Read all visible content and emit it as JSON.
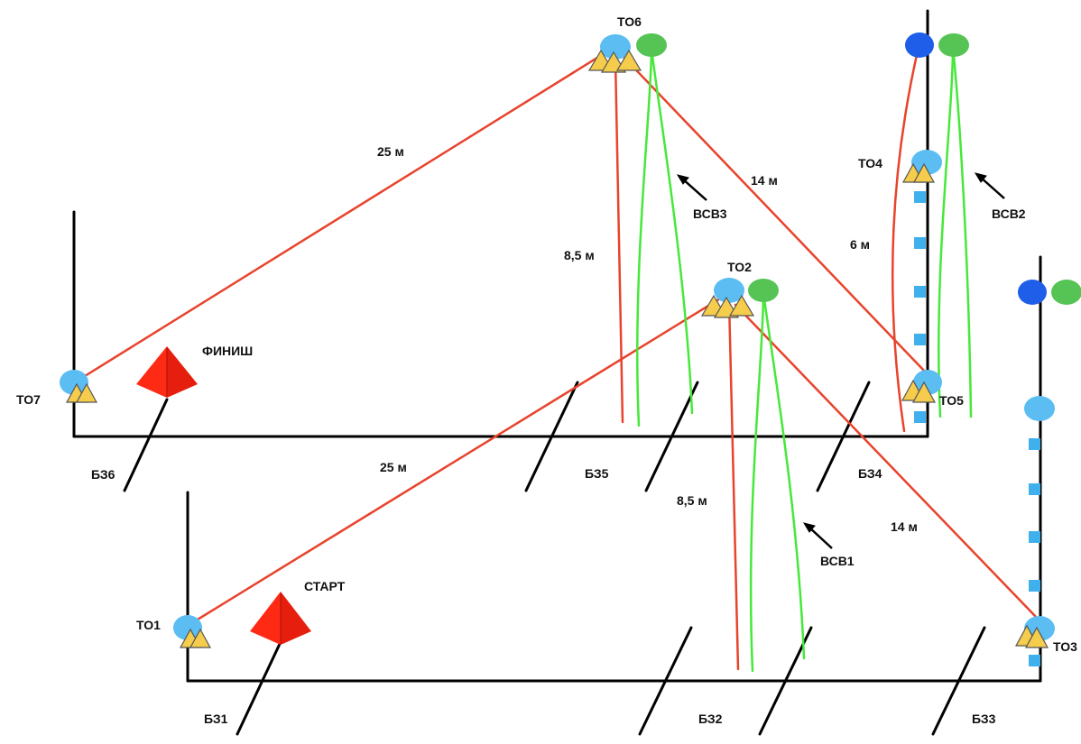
{
  "labels": {
    "to1": "ТО1",
    "to2": "ТО2",
    "to3": "ТО3",
    "to4": "ТО4",
    "to5": "ТО5",
    "to6": "ТО6",
    "to7": "ТО7",
    "start": "СТАРТ",
    "finish": "ФИНИШ",
    "bz1": "БЗ1",
    "bz2": "БЗ2",
    "bz3": "БЗ3",
    "bz4": "БЗ4",
    "bz5": "БЗ5",
    "bz6": "БЗ6",
    "vsv1": "ВСВ1",
    "vsv2": "ВСВ2",
    "vsv3": "ВСВ3"
  },
  "distances": {
    "to1_to2": "25 м",
    "to2_to3": "14 м",
    "to2_down": "8,5 м",
    "to6_to7": "25 м",
    "to6_to5": "14 м",
    "to6_down": "8,5 м",
    "to4_up": "6 м"
  },
  "colors": {
    "rope_red": "#e8432c",
    "rope_green": "#46e83a",
    "point_blue": "#5bbdf2",
    "point_dark_blue": "#1e5ee8",
    "point_green": "#55c455",
    "pyramid_red": "#ff2a14",
    "triangle_yellow": "#f5cc4c"
  }
}
